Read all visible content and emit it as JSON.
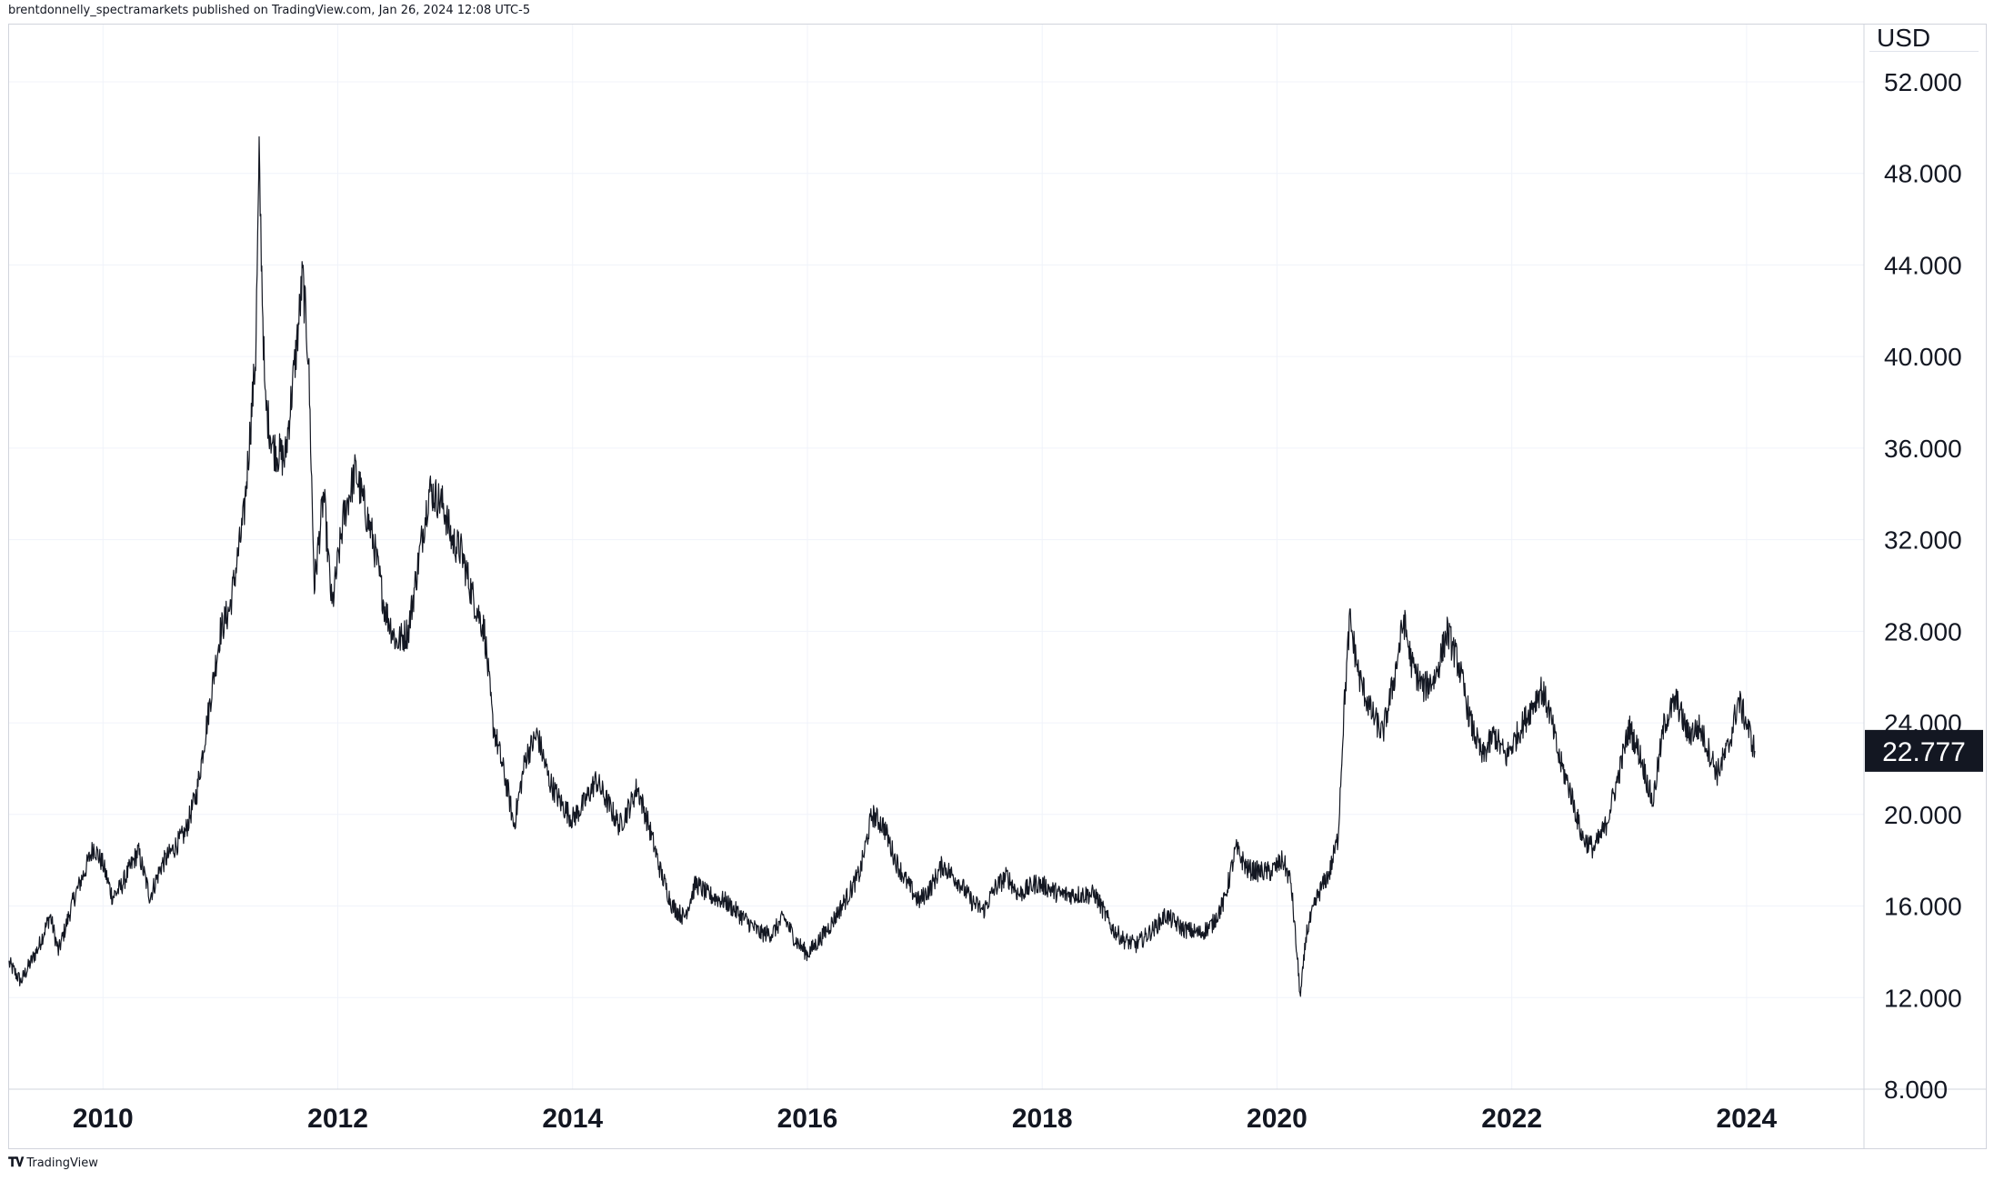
{
  "header": {
    "attribution": "brentdonnelly_spectramarkets published on TradingView.com, Jan 26, 2024 12:08 UTC-5"
  },
  "footer": {
    "brand": "TradingView",
    "logo_icon": "tradingview-logo-icon"
  },
  "axis": {
    "currency": "USD"
  },
  "colors": {
    "line": "#131722",
    "grid": "#f0f3fa",
    "last_price_bg": "#131722",
    "last_price_text": "#ffffff"
  },
  "chart_data": {
    "type": "line",
    "title": "",
    "xlabel": "",
    "ylabel": "",
    "grid": true,
    "y_ticks": [
      "8.000",
      "12.000",
      "16.000",
      "20.000",
      "24.000",
      "28.000",
      "32.000",
      "36.000",
      "40.000",
      "44.000",
      "48.000",
      "52.000"
    ],
    "y_tick_values": [
      8,
      12,
      16,
      20,
      24,
      28,
      32,
      36,
      40,
      44,
      48,
      52
    ],
    "x_ticks": [
      "2010",
      "2012",
      "2014",
      "2016",
      "2018",
      "2020",
      "2022",
      "2024"
    ],
    "x_tick_values": [
      2010,
      2012,
      2014,
      2016,
      2018,
      2020,
      2022,
      2024
    ],
    "xlim": [
      2009.2,
      2025.0
    ],
    "ylim": [
      8,
      54.5
    ],
    "last_price": 22.777,
    "last_price_label": "22.777",
    "series": [
      {
        "values": [
          [
            2009.2,
            13.5
          ],
          [
            2009.3,
            12.7
          ],
          [
            2009.45,
            14.2
          ],
          [
            2009.55,
            15.6
          ],
          [
            2009.62,
            14.0
          ],
          [
            2009.75,
            16.3
          ],
          [
            2009.85,
            17.6
          ],
          [
            2009.92,
            18.6
          ],
          [
            2010.0,
            17.8
          ],
          [
            2010.08,
            16.4
          ],
          [
            2010.15,
            16.8
          ],
          [
            2010.3,
            18.4
          ],
          [
            2010.4,
            16.4
          ],
          [
            2010.5,
            17.8
          ],
          [
            2010.6,
            18.5
          ],
          [
            2010.7,
            19.2
          ],
          [
            2010.8,
            21.0
          ],
          [
            2010.9,
            24.5
          ],
          [
            2011.0,
            28.0
          ],
          [
            2011.08,
            29.0
          ],
          [
            2011.2,
            33.0
          ],
          [
            2011.3,
            40.0
          ],
          [
            2011.33,
            48.5
          ],
          [
            2011.38,
            38.0
          ],
          [
            2011.45,
            36.0
          ],
          [
            2011.55,
            35.5
          ],
          [
            2011.65,
            40.5
          ],
          [
            2011.7,
            43.5
          ],
          [
            2011.75,
            40.0
          ],
          [
            2011.8,
            30.0
          ],
          [
            2011.88,
            34.0
          ],
          [
            2011.95,
            29.0
          ],
          [
            2012.05,
            33.0
          ],
          [
            2012.15,
            35.0
          ],
          [
            2012.3,
            32.0
          ],
          [
            2012.4,
            29.0
          ],
          [
            2012.5,
            27.5
          ],
          [
            2012.6,
            28.0
          ],
          [
            2012.7,
            31.5
          ],
          [
            2012.78,
            34.2
          ],
          [
            2012.9,
            33.5
          ],
          [
            2012.97,
            32.0
          ],
          [
            2013.05,
            31.5
          ],
          [
            2013.15,
            29.5
          ],
          [
            2013.25,
            28.0
          ],
          [
            2013.32,
            24.0
          ],
          [
            2013.45,
            21.0
          ],
          [
            2013.5,
            19.5
          ],
          [
            2013.6,
            22.5
          ],
          [
            2013.7,
            23.5
          ],
          [
            2013.8,
            21.5
          ],
          [
            2013.9,
            20.5
          ],
          [
            2014.0,
            19.8
          ],
          [
            2014.1,
            20.5
          ],
          [
            2014.2,
            21.5
          ],
          [
            2014.3,
            20.5
          ],
          [
            2014.4,
            19.5
          ],
          [
            2014.5,
            20.5
          ],
          [
            2014.55,
            21.2
          ],
          [
            2014.65,
            19.5
          ],
          [
            2014.75,
            17.5
          ],
          [
            2014.85,
            16.0
          ],
          [
            2014.95,
            15.5
          ],
          [
            2015.05,
            17.0
          ],
          [
            2015.15,
            16.5
          ],
          [
            2015.3,
            16.2
          ],
          [
            2015.45,
            15.5
          ],
          [
            2015.6,
            14.8
          ],
          [
            2015.7,
            14.8
          ],
          [
            2015.8,
            15.5
          ],
          [
            2015.9,
            14.5
          ],
          [
            2016.0,
            13.9
          ],
          [
            2016.1,
            14.5
          ],
          [
            2016.2,
            15.2
          ],
          [
            2016.35,
            16.5
          ],
          [
            2016.45,
            17.5
          ],
          [
            2016.55,
            20.0
          ],
          [
            2016.65,
            19.5
          ],
          [
            2016.75,
            18.0
          ],
          [
            2016.85,
            17.0
          ],
          [
            2016.95,
            16.2
          ],
          [
            2017.05,
            16.8
          ],
          [
            2017.15,
            17.8
          ],
          [
            2017.3,
            17.0
          ],
          [
            2017.4,
            16.2
          ],
          [
            2017.5,
            15.8
          ],
          [
            2017.6,
            16.8
          ],
          [
            2017.7,
            17.3
          ],
          [
            2017.8,
            16.5
          ],
          [
            2017.95,
            17.0
          ],
          [
            2018.05,
            16.8
          ],
          [
            2018.15,
            16.5
          ],
          [
            2018.3,
            16.5
          ],
          [
            2018.45,
            16.5
          ],
          [
            2018.6,
            15.0
          ],
          [
            2018.7,
            14.5
          ],
          [
            2018.8,
            14.3
          ],
          [
            2018.95,
            15.0
          ],
          [
            2019.05,
            15.6
          ],
          [
            2019.2,
            15.0
          ],
          [
            2019.35,
            14.8
          ],
          [
            2019.45,
            15.2
          ],
          [
            2019.55,
            16.2
          ],
          [
            2019.65,
            18.5
          ],
          [
            2019.75,
            17.6
          ],
          [
            2019.85,
            17.5
          ],
          [
            2019.95,
            17.5
          ],
          [
            2020.05,
            18.0
          ],
          [
            2020.12,
            17.0
          ],
          [
            2020.2,
            12.0
          ],
          [
            2020.25,
            14.8
          ],
          [
            2020.35,
            16.5
          ],
          [
            2020.45,
            17.5
          ],
          [
            2020.52,
            19.0
          ],
          [
            2020.57,
            24.5
          ],
          [
            2020.62,
            28.5
          ],
          [
            2020.7,
            26.0
          ],
          [
            2020.8,
            24.5
          ],
          [
            2020.9,
            23.5
          ],
          [
            2021.0,
            26.0
          ],
          [
            2021.08,
            28.5
          ],
          [
            2021.15,
            26.5
          ],
          [
            2021.25,
            25.5
          ],
          [
            2021.35,
            26.0
          ],
          [
            2021.45,
            28.0
          ],
          [
            2021.55,
            26.5
          ],
          [
            2021.65,
            24.0
          ],
          [
            2021.75,
            22.5
          ],
          [
            2021.85,
            23.5
          ],
          [
            2021.95,
            22.5
          ],
          [
            2022.05,
            23.5
          ],
          [
            2022.15,
            24.5
          ],
          [
            2022.25,
            25.5
          ],
          [
            2022.32,
            24.5
          ],
          [
            2022.4,
            22.5
          ],
          [
            2022.5,
            21.0
          ],
          [
            2022.6,
            19.0
          ],
          [
            2022.7,
            18.5
          ],
          [
            2022.8,
            19.5
          ],
          [
            2022.9,
            21.5
          ],
          [
            2023.0,
            23.8
          ],
          [
            2023.1,
            22.5
          ],
          [
            2023.2,
            20.5
          ],
          [
            2023.3,
            24.0
          ],
          [
            2023.4,
            25.0
          ],
          [
            2023.5,
            23.5
          ],
          [
            2023.6,
            23.8
          ],
          [
            2023.7,
            22.5
          ],
          [
            2023.75,
            21.8
          ],
          [
            2023.85,
            23.0
          ],
          [
            2023.93,
            25.0
          ],
          [
            2024.0,
            24.0
          ],
          [
            2024.07,
            22.777
          ]
        ]
      }
    ]
  }
}
